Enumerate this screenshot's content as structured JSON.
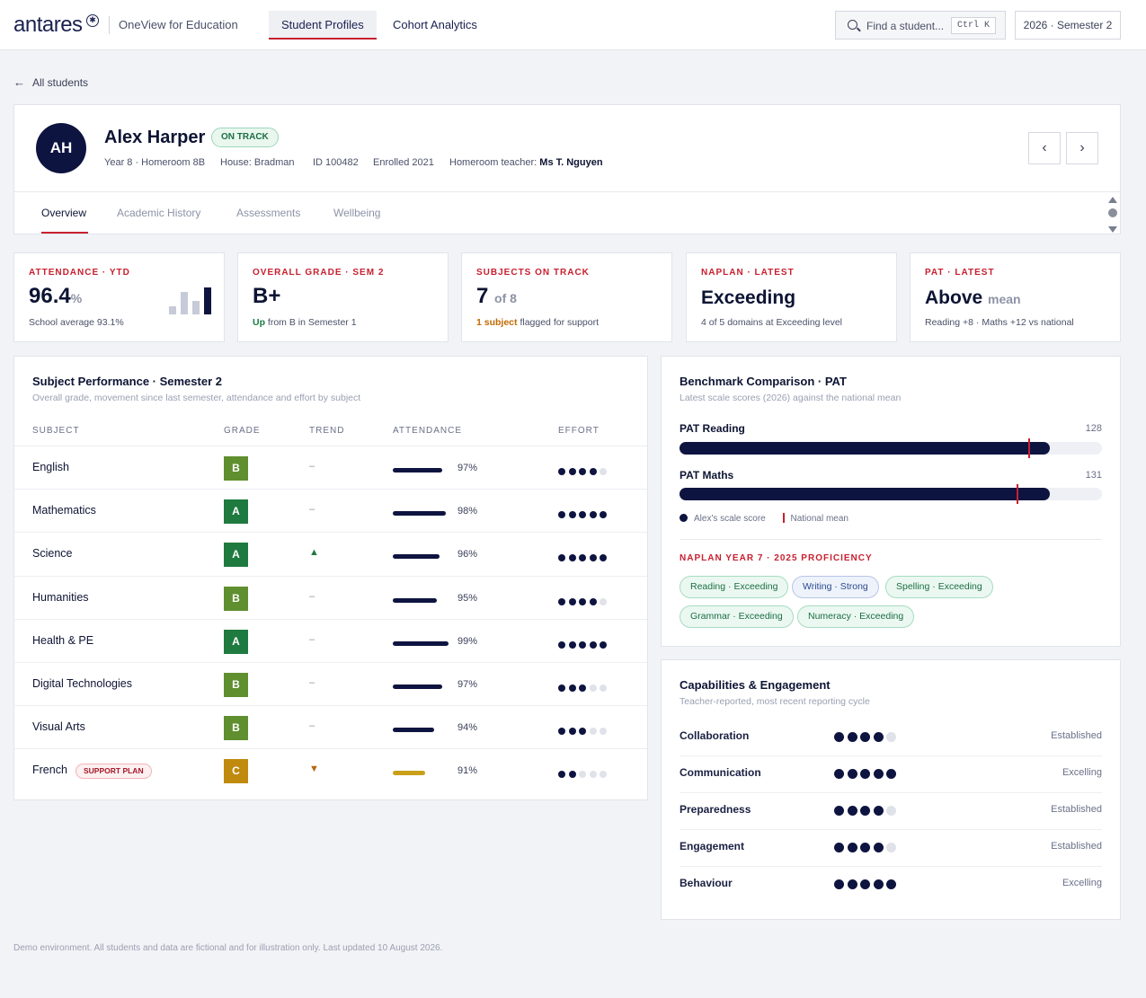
{
  "app": {
    "logo_text": "antares",
    "logo_mark": "✱",
    "product": "OneView for Education",
    "nav": [
      "Student Profiles",
      "Cohort Analytics"
    ],
    "search_placeholder": "Find a student...",
    "search_shortcut": "Ctrl K",
    "term": "2026 · Semester 2"
  },
  "back_label": "All students",
  "student": {
    "initials": "AH",
    "name": "Alex Harper",
    "status": "ON TRACK",
    "year_homeroom": "Year 8 · Homeroom 8B",
    "house": "House: Bradman",
    "id": "ID 100482",
    "enrolled": "Enrolled 2021",
    "teacher_label": "Homeroom teacher:",
    "teacher": "Ms T. Nguyen",
    "tabs": [
      "Overview",
      "Academic History",
      "Assessments",
      "Wellbeing"
    ]
  },
  "kpis": {
    "attendance": {
      "label": "ATTENDANCE · YTD",
      "value": "96.4",
      "suffix": "%",
      "sub": "School average 93.1%",
      "trend": [
        0.3,
        0.82,
        0.5,
        1.0
      ]
    },
    "grade": {
      "label": "OVERALL GRADE · SEM 2",
      "value": "B+",
      "sub_emph": "Up",
      "sub": " from B in Semester 1"
    },
    "subjects": {
      "label": "SUBJECTS ON TRACK",
      "value": "7",
      "suffix": "of 8",
      "sub_emph": "1 subject",
      "sub": " flagged for support"
    },
    "naplan": {
      "label": "NAPLAN · LATEST",
      "value": "Exceeding",
      "sub": "4 of 5 domains at Exceeding level"
    },
    "pat": {
      "label": "PAT · LATEST",
      "value": "Above",
      "suffix": "mean",
      "sub": "Reading +8 · Maths +12 vs national"
    }
  },
  "subject_perf": {
    "title": "Subject Performance · Semester 2",
    "subtitle": "Overall grade, movement since last semester, attendance and effort by subject",
    "headers": [
      "SUBJECT",
      "GRADE",
      "TREND",
      "ATTENDANCE",
      "EFFORT"
    ],
    "rows": [
      {
        "subject": "English",
        "grade": "B",
        "trend": "–",
        "attendance": "97%",
        "att_frac": 0.97,
        "effort": 4
      },
      {
        "subject": "Mathematics",
        "grade": "A",
        "trend": "–",
        "attendance": "98%",
        "att_frac": 0.98,
        "effort": 5
      },
      {
        "subject": "Science",
        "grade": "A",
        "trend": "▲",
        "attendance": "96%",
        "att_frac": 0.96,
        "effort": 5
      },
      {
        "subject": "Humanities",
        "grade": "B",
        "trend": "–",
        "attendance": "95%",
        "att_frac": 0.95,
        "effort": 4
      },
      {
        "subject": "Health & PE",
        "grade": "A",
        "trend": "–",
        "attendance": "99%",
        "att_frac": 0.99,
        "effort": 5
      },
      {
        "subject": "Digital Technologies",
        "grade": "B",
        "trend": "–",
        "attendance": "97%",
        "att_frac": 0.97,
        "effort": 3
      },
      {
        "subject": "Visual Arts",
        "grade": "B",
        "trend": "–",
        "attendance": "94%",
        "att_frac": 0.94,
        "effort": 3
      },
      {
        "subject": "French",
        "badge": "SUPPORT PLAN",
        "grade": "C",
        "trend": "▼",
        "attendance": "91%",
        "att_frac": 0.91,
        "effort": 2
      }
    ]
  },
  "benchmark": {
    "title": "Benchmark Comparison · PAT",
    "subtitle": "Latest scale scores (2026) against the national mean",
    "items": [
      {
        "label": "PAT Reading",
        "value": "128",
        "fill": 0.877,
        "mean": 0.826
      },
      {
        "label": "PAT Maths",
        "value": "131",
        "fill": 0.877,
        "mean": 0.798
      }
    ],
    "legend_score": "Alex's scale score",
    "legend_mean": "National mean",
    "naplan_label": "NAPLAN YEAR 7 · 2025 PROFICIENCY",
    "chips": [
      {
        "text": "Reading · Exceeding",
        "kind": "exc"
      },
      {
        "text": "Writing · Strong",
        "kind": "str"
      },
      {
        "text": "Spelling · Exceeding",
        "kind": "exc"
      },
      {
        "text": "Grammar · Exceeding",
        "kind": "exc"
      },
      {
        "text": "Numeracy · Exceeding",
        "kind": "exc"
      }
    ]
  },
  "capabilities": {
    "title": "Capabilities & Engagement",
    "subtitle": "Teacher-reported, most recent reporting cycle",
    "items": [
      {
        "name": "Collaboration",
        "score": 4,
        "level": "Established"
      },
      {
        "name": "Communication",
        "score": 5,
        "level": "Excelling"
      },
      {
        "name": "Preparedness",
        "score": 4,
        "level": "Established"
      },
      {
        "name": "Engagement",
        "score": 4,
        "level": "Established"
      },
      {
        "name": "Behaviour",
        "score": 5,
        "level": "Excelling"
      }
    ]
  },
  "colors": {
    "navy": "#0e1440",
    "accent_red": "#c8202f",
    "grade_A": "#1f7a3f",
    "grade_B": "#5f8f2e",
    "grade_C": "#c08a0e",
    "trend_up": "#1f7a3f",
    "trend_down": "#b8650d",
    "support_bar": "#c9a01a"
  },
  "footer": "Demo environment. All students and data are fictional and for illustration only. Last updated 10 August 2026."
}
